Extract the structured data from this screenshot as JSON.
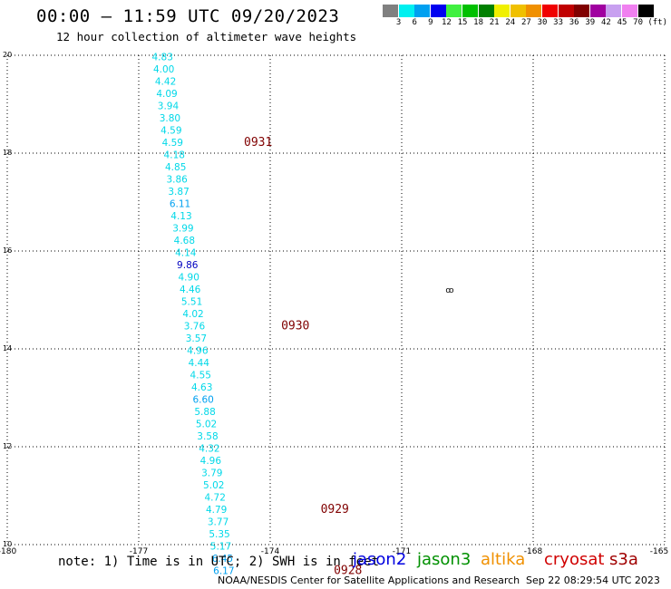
{
  "header": {
    "title": "00:00 – 11:59 UTC 09/20/2023",
    "subtitle": "12 hour collection of altimeter wave heights"
  },
  "legend": {
    "unit": "(ft)",
    "bins": [
      {
        "label": "3",
        "color": "#808080"
      },
      {
        "label": "6",
        "color": "#00f0f0"
      },
      {
        "label": "9",
        "color": "#00a0f0"
      },
      {
        "label": "12",
        "color": "#0000f0"
      },
      {
        "label": "15",
        "color": "#40f040"
      },
      {
        "label": "18",
        "color": "#00c000"
      },
      {
        "label": "21",
        "color": "#008000"
      },
      {
        "label": "24",
        "color": "#f0f000"
      },
      {
        "label": "27",
        "color": "#f0c000"
      },
      {
        "label": "30",
        "color": "#f09000"
      },
      {
        "label": "33",
        "color": "#f00000"
      },
      {
        "label": "36",
        "color": "#c00000"
      },
      {
        "label": "39",
        "color": "#800000"
      },
      {
        "label": "42",
        "color": "#a000a0"
      },
      {
        "label": "45",
        "color": "#c8a0f0"
      },
      {
        "label": "70",
        "color": "#f080f0"
      },
      {
        "label": "",
        "color": "#000000"
      }
    ]
  },
  "chart_data": {
    "type": "scatter",
    "xlim": [
      -180,
      -165
    ],
    "ylim": [
      10,
      20
    ],
    "x_ticks": [
      "-180",
      "-177",
      "-174",
      "-171",
      "-168",
      "-165"
    ],
    "y_ticks": [
      "10",
      "12",
      "14",
      "16",
      "18",
      "20"
    ],
    "grid": true,
    "point_color": "#00d8e8",
    "points": [
      {
        "lon": -176.7,
        "lat": 19.9,
        "v": "4.83"
      },
      {
        "lon": -176.67,
        "lat": 19.65,
        "v": "4.00"
      },
      {
        "lon": -176.63,
        "lat": 19.4,
        "v": "4.42"
      },
      {
        "lon": -176.6,
        "lat": 19.15,
        "v": "4.09"
      },
      {
        "lon": -176.57,
        "lat": 18.9,
        "v": "3.94"
      },
      {
        "lon": -176.53,
        "lat": 18.65,
        "v": "3.80"
      },
      {
        "lon": -176.5,
        "lat": 18.4,
        "v": "4.59"
      },
      {
        "lon": -176.47,
        "lat": 18.15,
        "v": "4.59"
      },
      {
        "lon": -176.43,
        "lat": 17.9,
        "v": "4.18"
      },
      {
        "lon": -176.4,
        "lat": 17.65,
        "v": "4.85"
      },
      {
        "lon": -176.37,
        "lat": 17.4,
        "v": "3.86"
      },
      {
        "lon": -176.33,
        "lat": 17.15,
        "v": "3.87"
      },
      {
        "lon": -176.3,
        "lat": 16.9,
        "v": "6.11",
        "color": "#00a0f0"
      },
      {
        "lon": -176.27,
        "lat": 16.65,
        "v": "4.13"
      },
      {
        "lon": -176.23,
        "lat": 16.4,
        "v": "3.99"
      },
      {
        "lon": -176.2,
        "lat": 16.15,
        "v": "4.68"
      },
      {
        "lon": -176.17,
        "lat": 15.9,
        "v": "4.14"
      },
      {
        "lon": -176.13,
        "lat": 15.65,
        "v": "9.86",
        "color": "#0000c0"
      },
      {
        "lon": -176.1,
        "lat": 15.4,
        "v": "4.90"
      },
      {
        "lon": -176.07,
        "lat": 15.15,
        "v": "4.46"
      },
      {
        "lon": -176.03,
        "lat": 14.9,
        "v": "5.51"
      },
      {
        "lon": -176.0,
        "lat": 14.65,
        "v": "4.02"
      },
      {
        "lon": -175.97,
        "lat": 14.4,
        "v": "3.76"
      },
      {
        "lon": -175.93,
        "lat": 14.15,
        "v": "3.57"
      },
      {
        "lon": -175.9,
        "lat": 13.9,
        "v": "4.96"
      },
      {
        "lon": -175.87,
        "lat": 13.65,
        "v": "4.44"
      },
      {
        "lon": -175.83,
        "lat": 13.4,
        "v": "4.55"
      },
      {
        "lon": -175.8,
        "lat": 13.15,
        "v": "4.63"
      },
      {
        "lon": -175.77,
        "lat": 12.9,
        "v": "6.60",
        "color": "#00a0f0"
      },
      {
        "lon": -175.73,
        "lat": 12.65,
        "v": "5.88"
      },
      {
        "lon": -175.7,
        "lat": 12.4,
        "v": "5.02"
      },
      {
        "lon": -175.67,
        "lat": 12.15,
        "v": "3.58"
      },
      {
        "lon": -175.63,
        "lat": 11.9,
        "v": "4.32"
      },
      {
        "lon": -175.6,
        "lat": 11.65,
        "v": "4.96"
      },
      {
        "lon": -175.57,
        "lat": 11.4,
        "v": "3.79"
      },
      {
        "lon": -175.53,
        "lat": 11.15,
        "v": "5.02"
      },
      {
        "lon": -175.5,
        "lat": 10.9,
        "v": "4.72"
      },
      {
        "lon": -175.47,
        "lat": 10.65,
        "v": "4.79"
      },
      {
        "lon": -175.43,
        "lat": 10.4,
        "v": "3.77"
      },
      {
        "lon": -175.4,
        "lat": 10.15,
        "v": "5.35"
      },
      {
        "lon": -175.37,
        "lat": 9.9,
        "v": "5.17"
      },
      {
        "lon": -175.33,
        "lat": 9.65,
        "v": "6.45",
        "color": "#00a0f0"
      },
      {
        "lon": -175.3,
        "lat": 9.4,
        "v": "6.17",
        "color": "#00a0f0"
      }
    ],
    "time_labels": [
      {
        "lon": -174.6,
        "lat": 18.15,
        "text": "0931"
      },
      {
        "lon": -173.75,
        "lat": 14.4,
        "text": "0930"
      },
      {
        "lon": -172.85,
        "lat": 10.65,
        "text": "0929"
      },
      {
        "lon": -172.55,
        "lat": 9.4,
        "text": "0928"
      }
    ],
    "time_label_color": "#800000"
  },
  "footer": {
    "note": "note: 1) Time is in UTC; 2) SWH is in feet",
    "satellites": [
      {
        "name": "jason2",
        "color": "#0000e0"
      },
      {
        "name": "jason3",
        "color": "#009000"
      },
      {
        "name": "altika",
        "color": "#f09000"
      },
      {
        "name": "cryosat",
        "color": "#d00000"
      },
      {
        "name": "s3a",
        "color": "#a00000"
      }
    ],
    "credit": "NOAA/NESDIS Center for Satellite Applications and Research",
    "timestamp": "Sep 22 08:29:54 UTC 2023"
  }
}
